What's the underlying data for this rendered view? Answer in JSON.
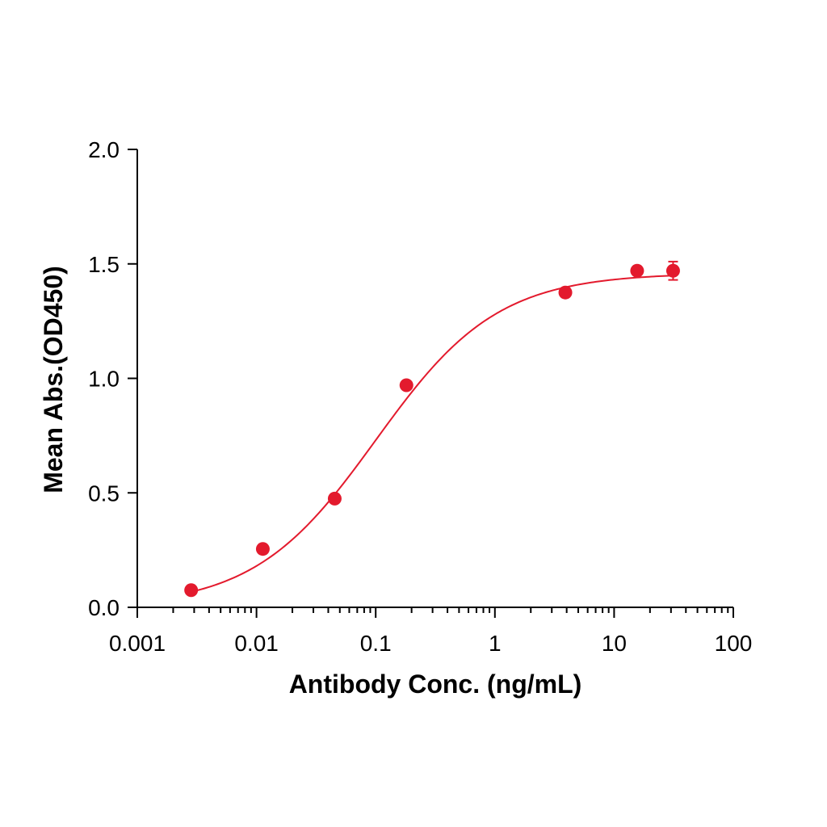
{
  "chart_data": {
    "type": "scatter",
    "title": "",
    "xlabel": "Antibody Conc. (ng/mL)",
    "ylabel": "Mean Abs.(OD450)",
    "x_scale": "log",
    "xlim": [
      0.001,
      100
    ],
    "ylim": [
      0.0,
      2.0
    ],
    "x_ticks": [
      0.001,
      0.01,
      0.1,
      1,
      10,
      100
    ],
    "x_tick_labels": [
      "0.001",
      "0.01",
      "0.1",
      "1",
      "10",
      "100"
    ],
    "y_ticks": [
      0.0,
      0.5,
      1.0,
      1.5,
      2.0
    ],
    "y_tick_labels": [
      "0.0",
      "0.5",
      "1.0",
      "1.5",
      "2.0"
    ],
    "grid": false,
    "series": [
      {
        "color": "#e31a2d",
        "points": [
          {
            "x": 0.00283,
            "y": 0.075,
            "err": 0.0
          },
          {
            "x": 0.0113,
            "y": 0.255,
            "err": 0.0
          },
          {
            "x": 0.0453,
            "y": 0.475,
            "err": 0.0
          },
          {
            "x": 0.181,
            "y": 0.97,
            "err": 0.0
          },
          {
            "x": 3.9,
            "y": 1.375,
            "err": 0.0
          },
          {
            "x": 15.6,
            "y": 1.47,
            "err": 0.0
          },
          {
            "x": 31.25,
            "y": 1.47,
            "err": 0.04
          }
        ],
        "fit": {
          "model": "4PL",
          "bottom": 0.0,
          "top": 1.46,
          "ec50": 0.1,
          "hill": 0.85
        }
      }
    ]
  }
}
